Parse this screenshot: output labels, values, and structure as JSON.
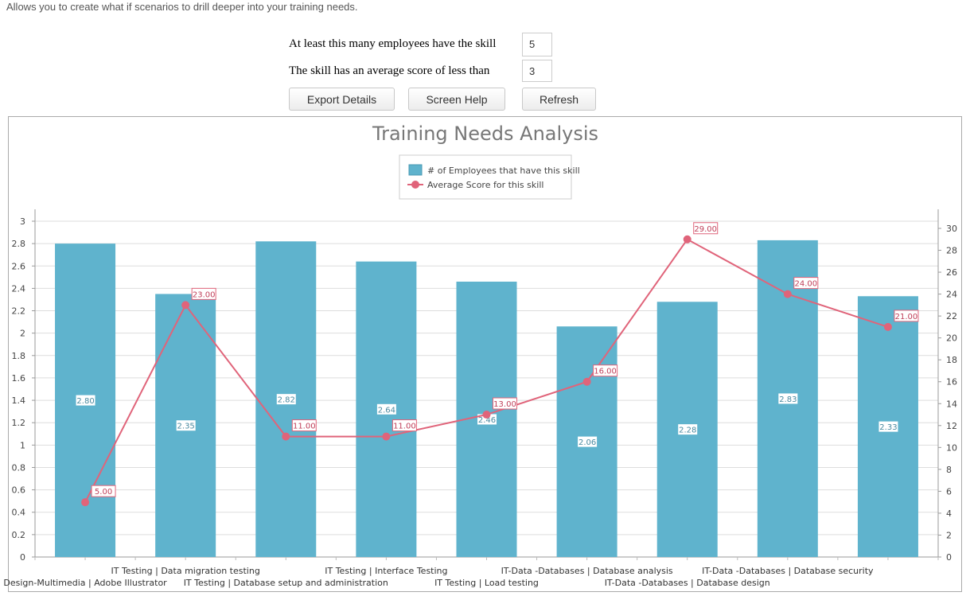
{
  "intro": "Allows you to create what if scenarios to drill deeper into your training needs.",
  "filters": {
    "min_employees_label": "At least this many employees have the skill",
    "min_employees_value": "5",
    "avg_score_label": "The skill has an average score of less than",
    "avg_score_value": "3"
  },
  "buttons": {
    "export": "Export Details",
    "help": "Screen Help",
    "refresh": "Refresh"
  },
  "chart_data": {
    "type": "bar+line",
    "title": "Training Needs Analysis",
    "legend_position": "top",
    "grid": true,
    "categories": [
      "Design-Multimedia | Adobe Illustrator",
      "IT Testing | Data migration testing",
      "IT Testing | Database setup and administration",
      "IT Testing | Interface Testing",
      "IT Testing | Load testing",
      "IT-Data  -Databases   | Database analysis",
      "IT-Data  -Databases   | Database design",
      "IT-Data  -Databases   | Database security",
      ""
    ],
    "series": [
      {
        "name": "# of Employees that have this skill",
        "type": "bar",
        "axis": "left",
        "color": "#5fb3cd",
        "values": [
          2.8,
          2.35,
          2.82,
          2.64,
          2.46,
          2.06,
          2.28,
          2.83,
          2.33
        ]
      },
      {
        "name": "Average Score for this skill",
        "type": "line",
        "axis": "right",
        "color": "#e0647a",
        "values": [
          5,
          23,
          11,
          11,
          13,
          16,
          29,
          24,
          21
        ]
      }
    ],
    "left_axis": {
      "range": [
        0,
        3
      ],
      "ticks": [
        "0",
        "0.2",
        "0.4",
        "0.6",
        "0.8",
        "1",
        "1.2",
        "1.4",
        "1.6",
        "1.8",
        "2",
        "2.2",
        "2.4",
        "2.6",
        "2.8",
        "3"
      ]
    },
    "right_axis": {
      "range": [
        0,
        30
      ],
      "ticks": [
        "0",
        "2",
        "4",
        "6",
        "8",
        "10",
        "12",
        "14",
        "16",
        "18",
        "20",
        "22",
        "24",
        "26",
        "28",
        "30"
      ]
    }
  }
}
